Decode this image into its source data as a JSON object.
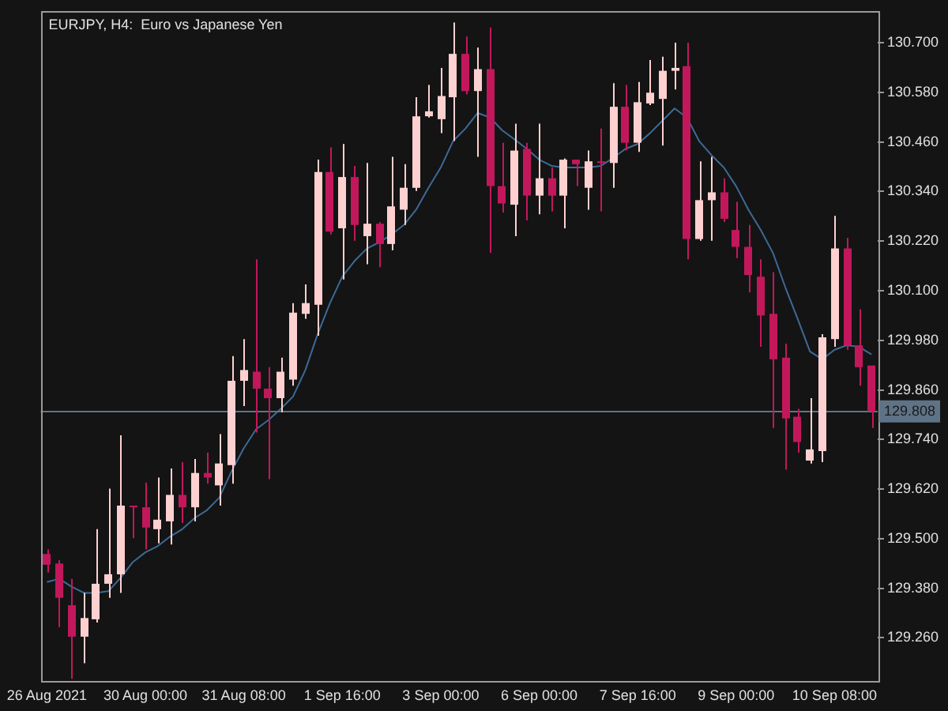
{
  "chart_data": {
    "type": "candlestick",
    "title": "EURJPY, H4:  Euro vs Japanese Yen",
    "categories": [
      "26 Aug 2021",
      null,
      null,
      null,
      null,
      null,
      null,
      null,
      "30 Aug 00:00",
      null,
      null,
      null,
      null,
      null,
      null,
      null,
      "31 Aug 08:00",
      null,
      null,
      null,
      null,
      null,
      null,
      null,
      "1 Sep 16:00",
      null,
      null,
      null,
      null,
      null,
      null,
      null,
      "3 Sep 00:00",
      null,
      null,
      null,
      null,
      null,
      null,
      null,
      "6 Sep 00:00",
      null,
      null,
      null,
      null,
      null,
      null,
      null,
      "7 Sep 16:00",
      null,
      null,
      null,
      null,
      null,
      null,
      null,
      "9 Sep 00:00",
      null,
      null,
      null,
      null,
      null,
      null,
      null,
      "10 Sep 08:00",
      null,
      null,
      null
    ],
    "ylim": [
      129.155,
      130.775
    ],
    "yticks": [
      {
        "value": 129.26,
        "label": "129.260"
      },
      {
        "value": 129.38,
        "label": "129.380"
      },
      {
        "value": 129.5,
        "label": "129.500"
      },
      {
        "value": 129.62,
        "label": "129.620"
      },
      {
        "value": 129.74,
        "label": "129.740"
      },
      {
        "value": 129.86,
        "label": "129.860"
      },
      {
        "value": 129.98,
        "label": "129.980"
      },
      {
        "value": 130.1,
        "label": "130.100"
      },
      {
        "value": 130.22,
        "label": "130.220"
      },
      {
        "value": 130.34,
        "label": "130.340"
      },
      {
        "value": 130.46,
        "label": "130.460"
      },
      {
        "value": 130.58,
        "label": "130.580"
      },
      {
        "value": 130.7,
        "label": "130.700"
      }
    ],
    "ohlc": [
      [
        129.463,
        129.474,
        129.418,
        129.437
      ],
      [
        129.44,
        129.448,
        129.286,
        129.357
      ],
      [
        129.339,
        129.403,
        129.161,
        129.263
      ],
      [
        129.263,
        129.369,
        129.199,
        129.308
      ],
      [
        129.305,
        129.523,
        129.297,
        129.391
      ],
      [
        129.391,
        129.621,
        129.357,
        129.414
      ],
      [
        129.414,
        129.75,
        129.369,
        129.58
      ],
      [
        129.58,
        129.58,
        129.501,
        129.576
      ],
      [
        129.576,
        129.636,
        129.474,
        129.527
      ],
      [
        129.523,
        129.648,
        129.489,
        129.546
      ],
      [
        129.542,
        129.67,
        129.486,
        129.606
      ],
      [
        129.606,
        129.685,
        129.538,
        129.576
      ],
      [
        129.576,
        129.693,
        129.542,
        129.659
      ],
      [
        129.659,
        129.708,
        129.633,
        129.648
      ],
      [
        129.629,
        129.753,
        129.58,
        129.682
      ],
      [
        129.678,
        129.942,
        129.633,
        129.882
      ],
      [
        129.882,
        129.983,
        129.821,
        129.908
      ],
      [
        129.904,
        130.176,
        129.757,
        129.863
      ],
      [
        129.863,
        129.915,
        129.644,
        129.84
      ],
      [
        129.84,
        129.938,
        129.806,
        129.904
      ],
      [
        129.885,
        130.07,
        129.87,
        130.047
      ],
      [
        130.044,
        130.115,
        130.032,
        130.07
      ],
      [
        130.066,
        130.417,
        129.991,
        130.387
      ],
      [
        130.387,
        130.447,
        130.236,
        130.243
      ],
      [
        130.251,
        130.455,
        130.127,
        130.375
      ],
      [
        130.375,
        130.402,
        130.221,
        130.259
      ],
      [
        130.232,
        130.409,
        130.164,
        130.262
      ],
      [
        130.262,
        130.266,
        130.157,
        130.213
      ],
      [
        130.213,
        130.424,
        130.198,
        130.304
      ],
      [
        130.296,
        130.406,
        130.259,
        130.349
      ],
      [
        130.349,
        130.568,
        130.341,
        130.522
      ],
      [
        130.522,
        130.598,
        130.519,
        130.534
      ],
      [
        130.515,
        130.639,
        130.481,
        130.571
      ],
      [
        130.568,
        130.749,
        130.462,
        130.673
      ],
      [
        130.673,
        130.715,
        130.575,
        130.583
      ],
      [
        130.583,
        130.688,
        130.424,
        130.636
      ],
      [
        130.636,
        130.737,
        130.191,
        130.353
      ],
      [
        130.353,
        130.458,
        130.289,
        130.311
      ],
      [
        130.308,
        130.504,
        130.232,
        130.439
      ],
      [
        130.443,
        130.458,
        130.27,
        130.33
      ],
      [
        130.33,
        130.504,
        130.285,
        130.372
      ],
      [
        130.372,
        130.398,
        130.292,
        130.33
      ],
      [
        130.33,
        130.42,
        130.251,
        130.417
      ],
      [
        130.417,
        130.417,
        130.353,
        130.406
      ],
      [
        130.349,
        130.439,
        130.296,
        130.413
      ],
      [
        130.413,
        130.492,
        130.292,
        130.409
      ],
      [
        130.409,
        130.602,
        130.349,
        130.545
      ],
      [
        130.545,
        130.598,
        130.439,
        130.458
      ],
      [
        130.458,
        130.605,
        130.436,
        130.556
      ],
      [
        130.553,
        130.658,
        130.549,
        130.579
      ],
      [
        130.564,
        130.666,
        130.451,
        130.632
      ],
      [
        130.632,
        130.7,
        130.587,
        130.639
      ],
      [
        130.643,
        130.7,
        130.176,
        130.225
      ],
      [
        130.225,
        130.413,
        130.221,
        130.319
      ],
      [
        130.319,
        130.424,
        130.221,
        130.338
      ],
      [
        130.338,
        130.372,
        130.266,
        130.274
      ],
      [
        130.247,
        130.315,
        130.179,
        130.206
      ],
      [
        130.206,
        130.259,
        130.096,
        130.138
      ],
      [
        130.134,
        130.176,
        129.964,
        130.04
      ],
      [
        130.044,
        130.145,
        129.768,
        129.934
      ],
      [
        129.938,
        129.972,
        129.667,
        129.791
      ],
      [
        129.795,
        129.814,
        129.708,
        129.734
      ],
      [
        129.689,
        129.84,
        129.682,
        129.716
      ],
      [
        129.712,
        129.995,
        129.685,
        129.987
      ],
      [
        129.983,
        130.281,
        129.964,
        130.202
      ],
      [
        130.202,
        130.228,
        129.957,
        129.968
      ],
      [
        129.968,
        130.055,
        129.87,
        129.915
      ],
      [
        129.919,
        129.919,
        129.768,
        129.808
      ]
    ],
    "colors": [
      "#c2185b",
      "#c2185b",
      "#c2185b",
      "#ffd0d0",
      "#ffd0d0",
      "#ffd0d0",
      "#ffd0d0",
      "#c2185b",
      "#c2185b",
      "#ffd0d0",
      "#ffd0d0",
      "#c2185b",
      "#ffd0d0",
      "#c2185b",
      "#ffd0d0",
      "#ffd0d0",
      "#ffd0d0",
      "#c2185b",
      "#c2185b",
      "#ffd0d0",
      "#ffd0d0",
      "#ffd0d0",
      "#ffd0d0",
      "#c2185b",
      "#ffd0d0",
      "#c2185b",
      "#ffd0d0",
      "#c2185b",
      "#ffd0d0",
      "#ffd0d0",
      "#ffd0d0",
      "#ffd0d0",
      "#ffd0d0",
      "#ffd0d0",
      "#c2185b",
      "#ffd0d0",
      "#c2185b",
      "#c2185b",
      "#ffd0d0",
      "#c2185b",
      "#ffd0d0",
      "#c2185b",
      "#ffd0d0",
      "#c2185b",
      "#ffd0d0",
      "#c2185b",
      "#ffd0d0",
      "#c2185b",
      "#ffd0d0",
      "#ffd0d0",
      "#ffd0d0",
      "#ffd0d0",
      "#c2185b",
      "#ffd0d0",
      "#ffd0d0",
      "#c2185b",
      "#c2185b",
      "#c2185b",
      "#c2185b",
      "#c2185b",
      "#c2185b",
      "#c2185b",
      "#ffd0d0",
      "#ffd0d0",
      "#ffd0d0",
      "#c2185b",
      "#c2185b",
      "#c2185b"
    ],
    "series": [
      {
        "type": "line",
        "color": "#3d6a96",
        "values": [
          129.395,
          129.403,
          129.384,
          129.369,
          129.369,
          129.373,
          129.406,
          129.444,
          129.467,
          129.482,
          129.505,
          129.523,
          129.55,
          129.569,
          129.599,
          129.663,
          129.719,
          129.765,
          129.787,
          129.814,
          129.844,
          129.908,
          129.995,
          130.07,
          130.134,
          130.172,
          130.202,
          130.217,
          130.236,
          130.259,
          130.296,
          130.349,
          130.398,
          130.462,
          130.492,
          130.53,
          130.519,
          130.488,
          130.466,
          130.443,
          130.417,
          130.402,
          130.398,
          130.398,
          130.398,
          130.402,
          130.421,
          130.443,
          130.455,
          130.481,
          130.511,
          130.541,
          130.519,
          130.462,
          130.428,
          130.398,
          130.353,
          130.296,
          130.247,
          130.191,
          130.108,
          130.032,
          129.953,
          129.934,
          129.957,
          129.968,
          129.964,
          129.946
        ]
      }
    ],
    "ref_lines": [
      {
        "axis": "y",
        "value": 129.808,
        "label": "129.808",
        "color": "#5f7386"
      }
    ],
    "grid": false,
    "legend": false,
    "marker": "none"
  }
}
